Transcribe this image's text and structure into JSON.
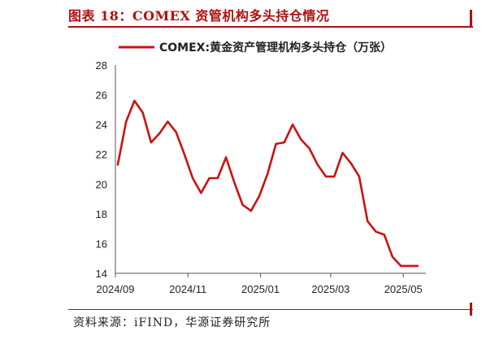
{
  "figure": {
    "title": "图表 18：COMEX 资管机构多头持仓情况",
    "source": "资料来源：iFIND，华源证券研究所"
  },
  "colors": {
    "accent": "#b01010",
    "line": "#cc1111",
    "axis": "#555555"
  },
  "chart_data": {
    "type": "line",
    "title": "",
    "xlabel": "",
    "ylabel": "",
    "ylim": [
      14,
      28
    ],
    "yticks": [
      "14",
      "16",
      "18",
      "20",
      "22",
      "24",
      "26",
      "28"
    ],
    "xticks": [
      "2024/09",
      "2024/11",
      "2025/01",
      "2025/03",
      "2025/05"
    ],
    "grid": false,
    "legend_position": "top",
    "series": [
      {
        "name": "COMEX:黄金资产管理机构多头持仓（万张）",
        "x": [
          "2024-09-03",
          "2024-09-10",
          "2024-09-17",
          "2024-09-24",
          "2024-10-01",
          "2024-10-08",
          "2024-10-15",
          "2024-10-22",
          "2024-10-29",
          "2024-11-05",
          "2024-11-12",
          "2024-11-19",
          "2024-11-26",
          "2024-12-03",
          "2024-12-10",
          "2024-12-17",
          "2024-12-24",
          "2024-12-31",
          "2025-01-07",
          "2025-01-14",
          "2025-01-21",
          "2025-01-28",
          "2025-02-04",
          "2025-02-11",
          "2025-02-18",
          "2025-02-25",
          "2025-03-04",
          "2025-03-11",
          "2025-03-18",
          "2025-03-25",
          "2025-04-01",
          "2025-04-08",
          "2025-04-15",
          "2025-04-22",
          "2025-04-29",
          "2025-05-06",
          "2025-05-13"
        ],
        "values": [
          21.3,
          24.2,
          25.6,
          24.8,
          22.8,
          23.4,
          24.2,
          23.5,
          22.0,
          20.4,
          19.4,
          20.4,
          20.4,
          21.8,
          20.1,
          18.6,
          18.2,
          19.2,
          20.7,
          22.7,
          22.8,
          24.0,
          23.0,
          22.4,
          21.3,
          20.5,
          20.5,
          22.1,
          21.4,
          20.5,
          17.5,
          16.8,
          16.6,
          15.1,
          14.5,
          14.5,
          14.5
        ]
      }
    ]
  }
}
